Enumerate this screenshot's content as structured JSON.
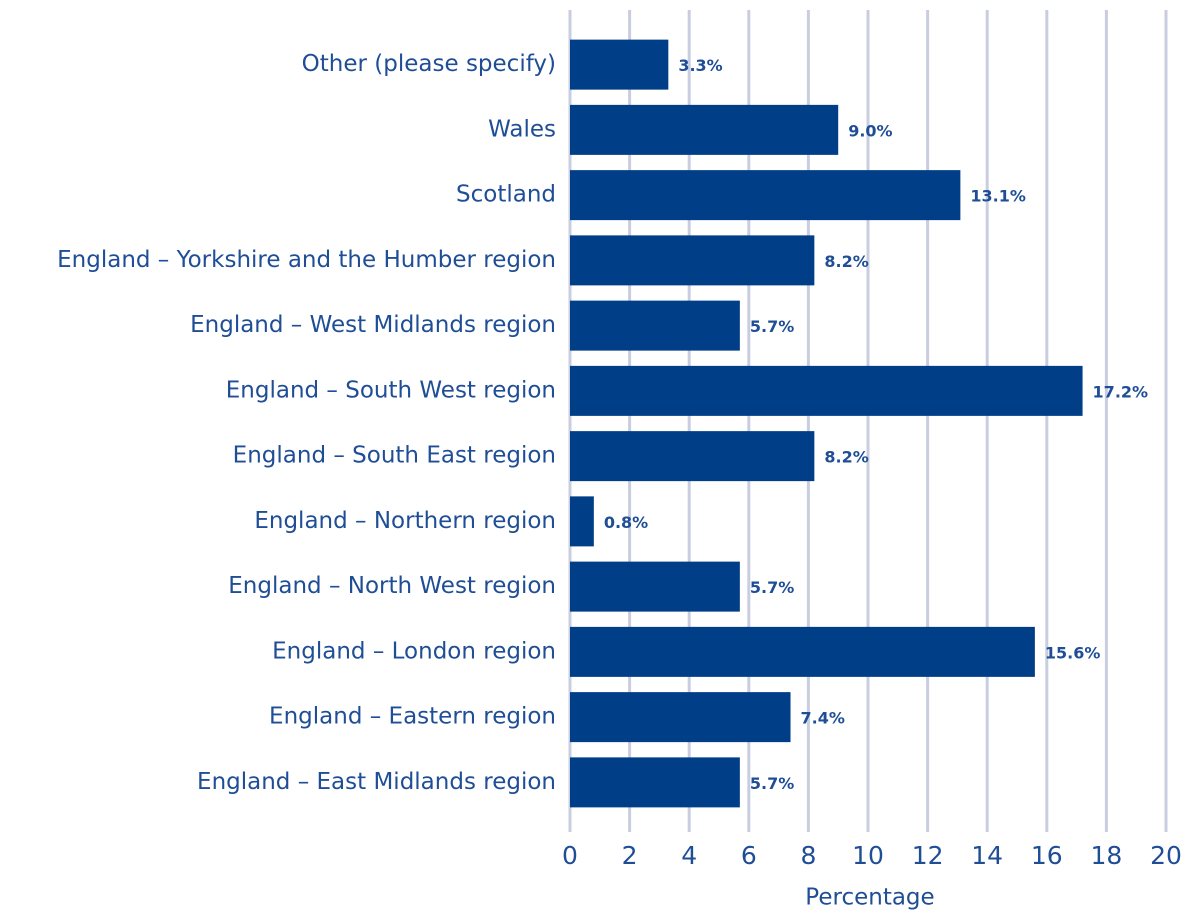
{
  "chart_data": {
    "type": "bar",
    "orientation": "horizontal",
    "categories": [
      "Other (please specify)",
      "Wales",
      "Scotland",
      "England – Yorkshire and the Humber region",
      "England – West Midlands region",
      "England – South West region",
      "England – South East region",
      "England – Northern region",
      "England – North West region",
      "England – London region",
      "England – Eastern region",
      "England – East Midlands region"
    ],
    "values": [
      3.3,
      9.0,
      13.1,
      8.2,
      5.7,
      17.2,
      8.2,
      0.8,
      5.7,
      15.6,
      7.4,
      5.7
    ],
    "value_labels": [
      "3.3%",
      "9.0%",
      "13.1%",
      "8.2%",
      "5.7%",
      "17.2%",
      "8.2%",
      "0.8%",
      "5.7%",
      "15.6%",
      "7.4%",
      "5.7%"
    ],
    "color": "#003f87",
    "xlabel": "Percentage",
    "xlim": [
      0,
      20
    ],
    "xticks": [
      0,
      2,
      4,
      6,
      8,
      10,
      12,
      14,
      16,
      18,
      20
    ],
    "grid": true
  }
}
